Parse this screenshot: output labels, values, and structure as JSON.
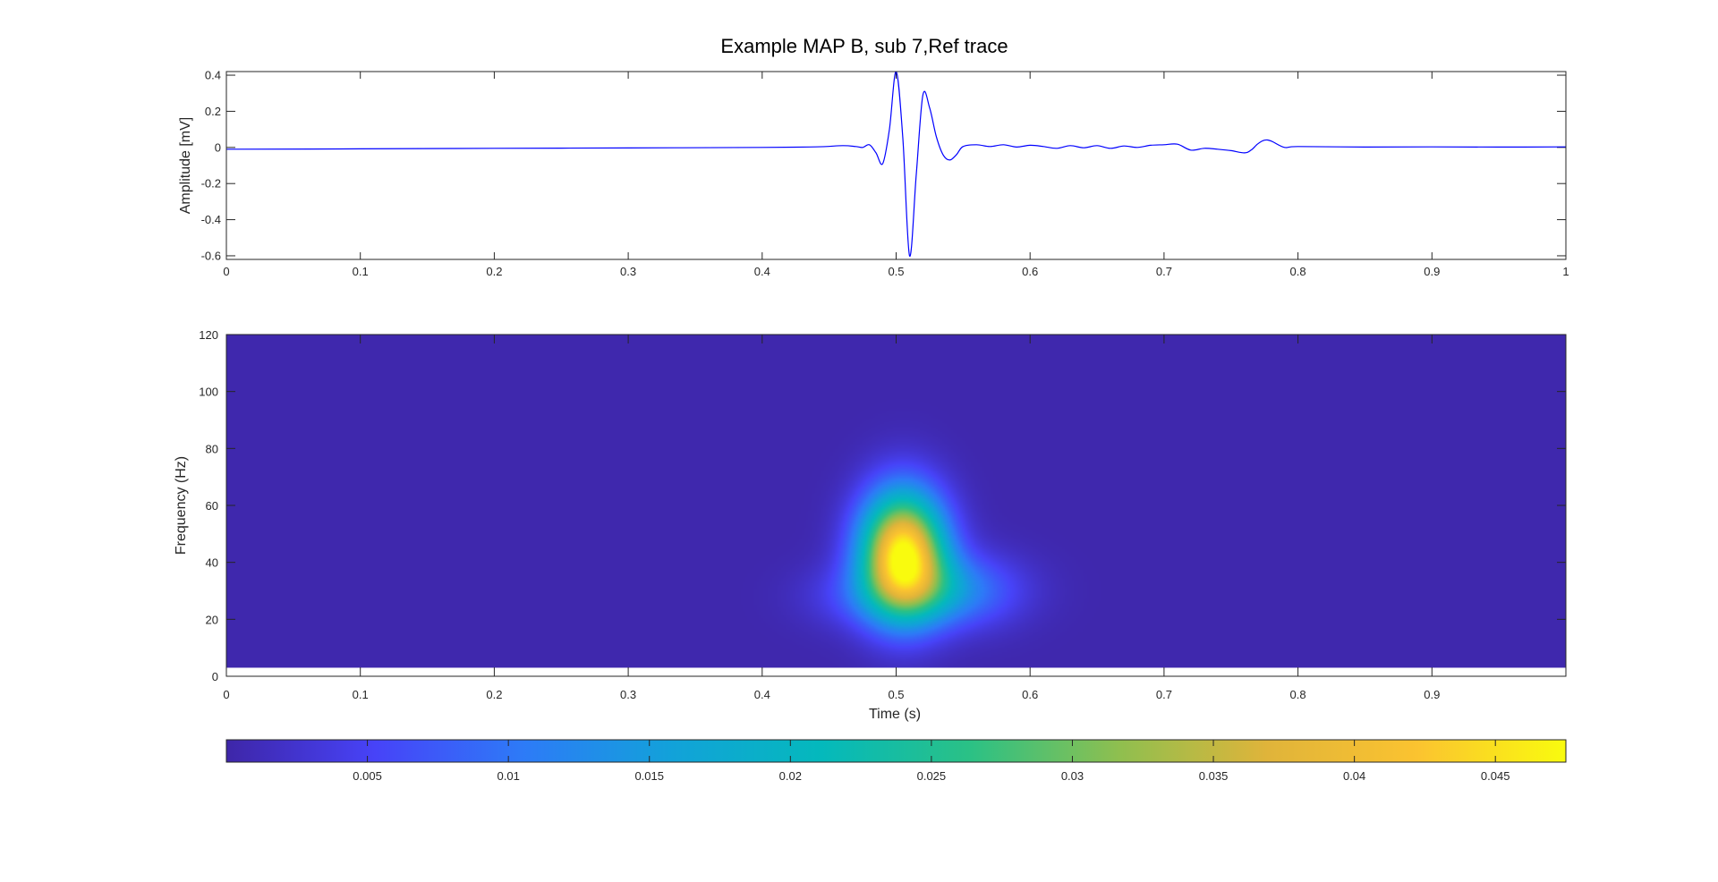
{
  "figure": {
    "title": "Example MAP B, sub 7,Ref trace"
  },
  "chart_data": [
    {
      "type": "line",
      "title": "Example MAP B, sub 7,Ref trace",
      "xlabel": "",
      "ylabel": "Amplitude [mV]",
      "xlim": [
        0,
        1
      ],
      "ylim": [
        -0.62,
        0.42
      ],
      "xticks": [
        0,
        0.1,
        0.2,
        0.3,
        0.4,
        0.5,
        0.6,
        0.7,
        0.8,
        0.9,
        1
      ],
      "xtick_labels": [
        "0",
        "0.1",
        "0.2",
        "0.3",
        "0.4",
        "0.5",
        "0.6",
        "0.7",
        "0.8",
        "0.9",
        "1"
      ],
      "yticks": [
        0.4,
        0.2,
        0,
        -0.2,
        -0.4,
        -0.6
      ],
      "ytick_labels": [
        "0.4",
        "0.2",
        "0",
        "-0.2",
        "-0.4",
        "-0.6"
      ],
      "grid": false,
      "line_color": "#0000ff",
      "x": [
        0,
        0.1,
        0.2,
        0.3,
        0.4,
        0.44,
        0.46,
        0.47,
        0.475,
        0.48,
        0.485,
        0.49,
        0.495,
        0.5,
        0.505,
        0.51,
        0.515,
        0.52,
        0.525,
        0.53,
        0.535,
        0.54,
        0.545,
        0.55,
        0.56,
        0.57,
        0.58,
        0.59,
        0.6,
        0.61,
        0.62,
        0.63,
        0.64,
        0.65,
        0.66,
        0.67,
        0.68,
        0.69,
        0.7,
        0.71,
        0.72,
        0.73,
        0.74,
        0.75,
        0.76,
        0.765,
        0.77,
        0.775,
        0.78,
        0.79,
        0.8,
        0.85,
        0.9,
        0.95,
        1.0
      ],
      "y": [
        -0.01,
        -0.008,
        -0.005,
        -0.003,
        0.0,
        0.003,
        0.01,
        0.005,
        0.0,
        0.015,
        -0.03,
        -0.09,
        0.1,
        0.42,
        0.05,
        -0.6,
        -0.15,
        0.29,
        0.22,
        0.06,
        -0.04,
        -0.07,
        -0.04,
        0.005,
        0.015,
        0.005,
        0.015,
        0.002,
        0.012,
        0.005,
        -0.005,
        0.01,
        -0.002,
        0.01,
        -0.005,
        0.008,
        0.0,
        0.012,
        0.015,
        0.018,
        -0.015,
        -0.005,
        -0.01,
        -0.018,
        -0.03,
        -0.015,
        0.02,
        0.04,
        0.035,
        0.0,
        0.005,
        0.002,
        0.003,
        0.002,
        0.003
      ]
    },
    {
      "type": "heatmap",
      "xlabel": "Time (s)",
      "ylabel": "Frequency (Hz)",
      "xlim": [
        0,
        1
      ],
      "ylim": [
        0,
        120
      ],
      "data_yrange": [
        3,
        120
      ],
      "xticks": [
        0,
        0.1,
        0.2,
        0.3,
        0.4,
        0.5,
        0.6,
        0.7,
        0.8,
        0.9
      ],
      "xtick_labels": [
        "0",
        "0.1",
        "0.2",
        "0.3",
        "0.4",
        "0.5",
        "0.6",
        "0.7",
        "0.8",
        "0.9"
      ],
      "yticks": [
        0,
        20,
        40,
        60,
        80,
        100,
        120
      ],
      "ytick_labels": [
        "0",
        "20",
        "40",
        "60",
        "80",
        "100",
        "120"
      ],
      "colormap": "parula",
      "colormap_stops": [
        "#3e26a8",
        "#4743f8",
        "#2d7bf7",
        "#12a2d9",
        "#04b9bc",
        "#2bc185",
        "#8fbf4f",
        "#e0b43a",
        "#fbc330",
        "#f9fb0e"
      ],
      "background_value": 0.0003,
      "peak": {
        "time": 0.505,
        "frequency": 43,
        "value": 0.047
      },
      "blobs": [
        {
          "time": 0.505,
          "frequency": 43,
          "sigma_time": 0.022,
          "sigma_frequency": 15,
          "amplitude": 0.047
        },
        {
          "time": 0.54,
          "frequency": 30,
          "sigma_time": 0.035,
          "sigma_frequency": 9,
          "amplitude": 0.012
        },
        {
          "time": 0.47,
          "frequency": 28,
          "sigma_time": 0.03,
          "sigma_frequency": 8,
          "amplitude": 0.004
        }
      ]
    },
    {
      "type": "colorbar",
      "orientation": "horizontal",
      "clim": [
        0,
        0.0475
      ],
      "ticks": [
        0.005,
        0.01,
        0.015,
        0.02,
        0.025,
        0.03,
        0.035,
        0.04,
        0.045
      ],
      "tick_labels": [
        "0.005",
        "0.01",
        "0.015",
        "0.02",
        "0.025",
        "0.03",
        "0.035",
        "0.04",
        "0.045"
      ]
    }
  ]
}
